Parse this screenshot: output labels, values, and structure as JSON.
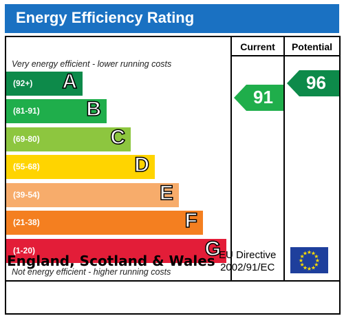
{
  "header": {
    "title": "Energy Efficiency Rating"
  },
  "columns": {
    "current": "Current",
    "potential": "Potential"
  },
  "notes": {
    "top": "Very energy efficient - lower running costs",
    "bottom": "Not energy efficient - higher running costs"
  },
  "bands": [
    {
      "range": "(92+)",
      "letter": "A",
      "color": "#0d8a4a"
    },
    {
      "range": "(81-91)",
      "letter": "B",
      "color": "#1fae4b"
    },
    {
      "range": "(69-80)",
      "letter": "C",
      "color": "#8dc63f"
    },
    {
      "range": "(55-68)",
      "letter": "D",
      "color": "#ffd400"
    },
    {
      "range": "(39-54)",
      "letter": "E",
      "color": "#f7ac6b"
    },
    {
      "range": "(21-38)",
      "letter": "F",
      "color": "#f47f20"
    },
    {
      "range": "(1-20)",
      "letter": "G",
      "color": "#e31d38"
    }
  ],
  "current": {
    "value": "91",
    "color": "#1fae4b"
  },
  "potential": {
    "value": "96",
    "color": "#0d8a4a"
  },
  "footer": {
    "region": "England, Scotland & Wales",
    "directive_line1": "EU Directive",
    "directive_line2": "2002/91/EC"
  }
}
